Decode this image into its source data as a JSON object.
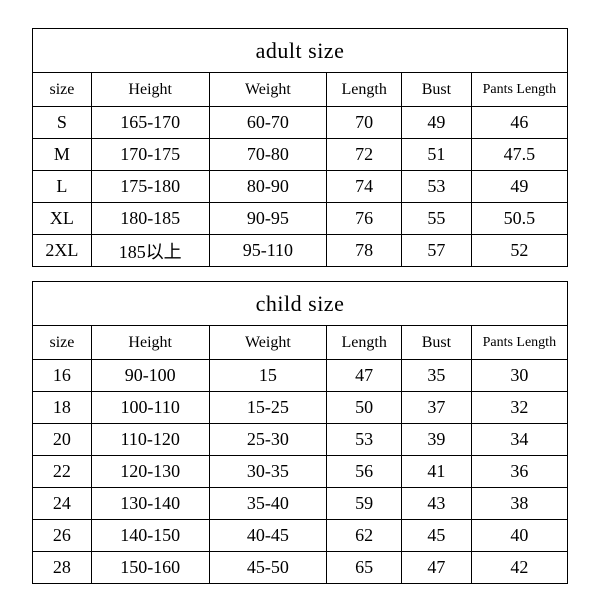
{
  "adult": {
    "title": "adult size",
    "columns": [
      "size",
      "Height",
      "Weight",
      "Length",
      "Bust",
      "Pants Length"
    ],
    "rows": [
      [
        "S",
        "165-170",
        "60-70",
        "70",
        "49",
        "46"
      ],
      [
        "M",
        "170-175",
        "70-80",
        "72",
        "51",
        "47.5"
      ],
      [
        "L",
        "175-180",
        "80-90",
        "74",
        "53",
        "49"
      ],
      [
        "XL",
        "180-185",
        "90-95",
        "76",
        "55",
        "50.5"
      ],
      [
        "2XL",
        "185以上",
        "95-110",
        "78",
        "57",
        "52"
      ]
    ]
  },
  "child": {
    "title": "child size",
    "columns": [
      "size",
      "Height",
      "Weight",
      "Length",
      "Bust",
      "Pants Length"
    ],
    "rows": [
      [
        "16",
        "90-100",
        "15",
        "47",
        "35",
        "30"
      ],
      [
        "18",
        "100-110",
        "15-25",
        "50",
        "37",
        "32"
      ],
      [
        "20",
        "110-120",
        "25-30",
        "53",
        "39",
        "34"
      ],
      [
        "22",
        "120-130",
        "30-35",
        "56",
        "41",
        "36"
      ],
      [
        "24",
        "130-140",
        "35-40",
        "59",
        "43",
        "38"
      ],
      [
        "26",
        "140-150",
        "40-45",
        "62",
        "45",
        "40"
      ],
      [
        "28",
        "150-160",
        "45-50",
        "65",
        "47",
        "42"
      ]
    ]
  },
  "styles": {
    "border_color": "#000000",
    "background_color": "#ffffff",
    "title_fontsize": 22,
    "header_fontsize": 16,
    "data_fontsize": 18,
    "col_widths_pct": [
      11,
      22,
      22,
      14,
      13,
      18
    ]
  }
}
